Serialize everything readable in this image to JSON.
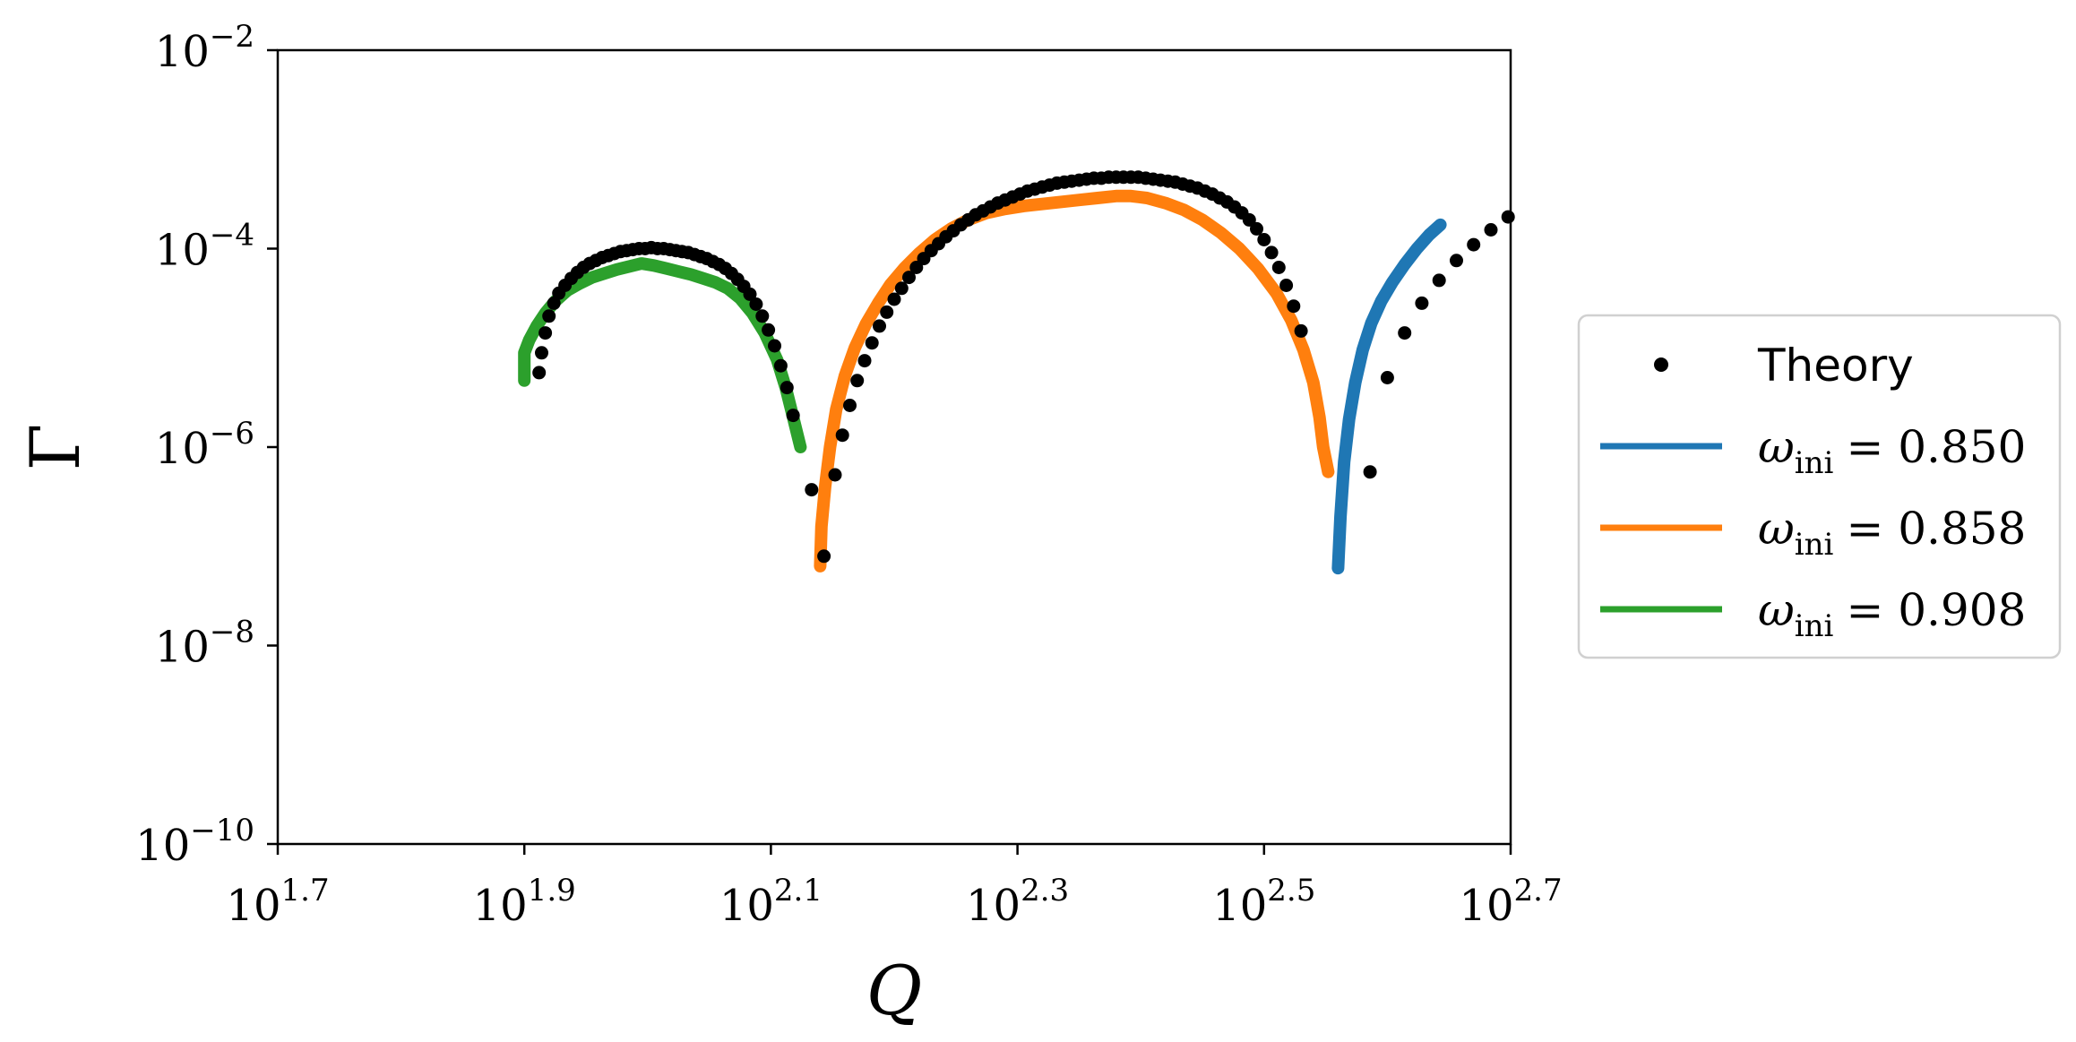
{
  "chart_data": {
    "type": "line",
    "xlabel": "Q",
    "ylabel": "Γ",
    "x_scale": "log10",
    "y_scale": "log10",
    "xlim": [
      1.7,
      2.7
    ],
    "ylim": [
      -10,
      -2
    ],
    "x_ticks": [
      {
        "exp": 1.7,
        "base": "10",
        "sup": "1.7"
      },
      {
        "exp": 1.9,
        "base": "10",
        "sup": "1.9"
      },
      {
        "exp": 2.1,
        "base": "10",
        "sup": "2.1"
      },
      {
        "exp": 2.3,
        "base": "10",
        "sup": "2.3"
      },
      {
        "exp": 2.5,
        "base": "10",
        "sup": "2.5"
      },
      {
        "exp": 2.7,
        "base": "10",
        "sup": "2.7"
      }
    ],
    "y_ticks": [
      {
        "exp": -2,
        "base": "10",
        "sup": "−2"
      },
      {
        "exp": -4,
        "base": "10",
        "sup": "−4"
      },
      {
        "exp": -6,
        "base": "10",
        "sup": "−6"
      },
      {
        "exp": -8,
        "base": "10",
        "sup": "−8"
      },
      {
        "exp": -10,
        "base": "10",
        "sup": "−10"
      }
    ],
    "legend_position": "outside-right",
    "series": [
      {
        "name": "Theory",
        "style": "dots",
        "color": "#000000",
        "points": [
          [
            1.912,
            -5.25
          ],
          [
            1.914,
            -5.05
          ],
          [
            1.917,
            -4.85
          ],
          [
            1.92,
            -4.68
          ],
          [
            1.924,
            -4.55
          ],
          [
            1.928,
            -4.45
          ],
          [
            1.933,
            -4.37
          ],
          [
            1.938,
            -4.3
          ],
          [
            1.943,
            -4.24
          ],
          [
            1.948,
            -4.19
          ],
          [
            1.953,
            -4.15
          ],
          [
            1.958,
            -4.12
          ],
          [
            1.963,
            -4.09
          ],
          [
            1.968,
            -4.07
          ],
          [
            1.973,
            -4.05
          ],
          [
            1.978,
            -4.03
          ],
          [
            1.983,
            -4.02
          ],
          [
            1.988,
            -4.01
          ],
          [
            1.993,
            -4.0
          ],
          [
            1.998,
            -4.0
          ],
          [
            2.003,
            -3.99
          ],
          [
            2.008,
            -4.0
          ],
          [
            2.013,
            -4.0
          ],
          [
            2.018,
            -4.01
          ],
          [
            2.023,
            -4.02
          ],
          [
            2.028,
            -4.03
          ],
          [
            2.033,
            -4.04
          ],
          [
            2.038,
            -4.06
          ],
          [
            2.043,
            -4.08
          ],
          [
            2.048,
            -4.1
          ],
          [
            2.053,
            -4.13
          ],
          [
            2.058,
            -4.16
          ],
          [
            2.063,
            -4.2
          ],
          [
            2.068,
            -4.25
          ],
          [
            2.073,
            -4.31
          ],
          [
            2.078,
            -4.38
          ],
          [
            2.083,
            -4.46
          ],
          [
            2.088,
            -4.56
          ],
          [
            2.093,
            -4.68
          ],
          [
            2.098,
            -4.82
          ],
          [
            2.103,
            -4.98
          ],
          [
            2.108,
            -5.18
          ],
          [
            2.113,
            -5.4
          ],
          [
            2.118,
            -5.68
          ],
          [
            2.133,
            -6.43
          ],
          [
            2.143,
            -7.1
          ],
          [
            2.152,
            -6.28
          ],
          [
            2.158,
            -5.88
          ],
          [
            2.164,
            -5.58
          ],
          [
            2.17,
            -5.33
          ],
          [
            2.176,
            -5.13
          ],
          [
            2.182,
            -4.95
          ],
          [
            2.188,
            -4.78
          ],
          [
            2.194,
            -4.64
          ],
          [
            2.2,
            -4.51
          ],
          [
            2.206,
            -4.4
          ],
          [
            2.212,
            -4.29
          ],
          [
            2.218,
            -4.19
          ],
          [
            2.224,
            -4.1
          ],
          [
            2.23,
            -4.02
          ],
          [
            2.236,
            -3.95
          ],
          [
            2.242,
            -3.88
          ],
          [
            2.248,
            -3.82
          ],
          [
            2.254,
            -3.76
          ],
          [
            2.26,
            -3.71
          ],
          [
            2.266,
            -3.66
          ],
          [
            2.272,
            -3.62
          ],
          [
            2.278,
            -3.58
          ],
          [
            2.284,
            -3.54
          ],
          [
            2.29,
            -3.51
          ],
          [
            2.296,
            -3.48
          ],
          [
            2.302,
            -3.45
          ],
          [
            2.308,
            -3.42
          ],
          [
            2.314,
            -3.4
          ],
          [
            2.32,
            -3.38
          ],
          [
            2.326,
            -3.36
          ],
          [
            2.332,
            -3.34
          ],
          [
            2.338,
            -3.33
          ],
          [
            2.344,
            -3.32
          ],
          [
            2.35,
            -3.31
          ],
          [
            2.356,
            -3.3
          ],
          [
            2.362,
            -3.29
          ],
          [
            2.368,
            -3.29
          ],
          [
            2.374,
            -3.28
          ],
          [
            2.38,
            -3.28
          ],
          [
            2.386,
            -3.28
          ],
          [
            2.392,
            -3.28
          ],
          [
            2.398,
            -3.28
          ],
          [
            2.404,
            -3.29
          ],
          [
            2.41,
            -3.3
          ],
          [
            2.416,
            -3.31
          ],
          [
            2.422,
            -3.32
          ],
          [
            2.428,
            -3.33
          ],
          [
            2.434,
            -3.35
          ],
          [
            2.44,
            -3.37
          ],
          [
            2.446,
            -3.39
          ],
          [
            2.452,
            -3.42
          ],
          [
            2.458,
            -3.45
          ],
          [
            2.464,
            -3.49
          ],
          [
            2.47,
            -3.53
          ],
          [
            2.476,
            -3.58
          ],
          [
            2.482,
            -3.64
          ],
          [
            2.488,
            -3.71
          ],
          [
            2.494,
            -3.8
          ],
          [
            2.5,
            -3.91
          ],
          [
            2.506,
            -4.04
          ],
          [
            2.512,
            -4.19
          ],
          [
            2.518,
            -4.37
          ],
          [
            2.524,
            -4.58
          ],
          [
            2.53,
            -4.83
          ],
          [
            2.586,
            -6.25
          ],
          [
            2.6,
            -5.3
          ],
          [
            2.614,
            -4.85
          ],
          [
            2.628,
            -4.55
          ],
          [
            2.642,
            -4.32
          ],
          [
            2.656,
            -4.12
          ],
          [
            2.67,
            -3.96
          ],
          [
            2.684,
            -3.81
          ],
          [
            2.698,
            -3.68
          ]
        ]
      },
      {
        "name": "ω_ini = 0.850",
        "label_symbol": "ω",
        "label_sub": "ini",
        "label_value": "= 0.850",
        "style": "line",
        "color": "#1f77b4",
        "points": [
          [
            2.56,
            -7.22
          ],
          [
            2.562,
            -6.7
          ],
          [
            2.565,
            -6.15
          ],
          [
            2.569,
            -5.72
          ],
          [
            2.574,
            -5.35
          ],
          [
            2.58,
            -5.02
          ],
          [
            2.587,
            -4.75
          ],
          [
            2.595,
            -4.53
          ],
          [
            2.604,
            -4.34
          ],
          [
            2.614,
            -4.16
          ],
          [
            2.624,
            -4.0
          ],
          [
            2.634,
            -3.86
          ],
          [
            2.643,
            -3.76
          ]
        ]
      },
      {
        "name": "ω_ini = 0.858",
        "label_symbol": "ω",
        "label_sub": "ini",
        "label_value": "= 0.858",
        "style": "line",
        "color": "#ff7f0e",
        "points": [
          [
            2.14,
            -7.2
          ],
          [
            2.141,
            -6.8
          ],
          [
            2.144,
            -6.4
          ],
          [
            2.148,
            -6.0
          ],
          [
            2.153,
            -5.62
          ],
          [
            2.16,
            -5.28
          ],
          [
            2.168,
            -5.0
          ],
          [
            2.177,
            -4.76
          ],
          [
            2.187,
            -4.55
          ],
          [
            2.197,
            -4.36
          ],
          [
            2.208,
            -4.2
          ],
          [
            2.22,
            -4.05
          ],
          [
            2.233,
            -3.91
          ],
          [
            2.246,
            -3.8
          ],
          [
            2.26,
            -3.71
          ],
          [
            2.275,
            -3.64
          ],
          [
            2.29,
            -3.6
          ],
          [
            2.305,
            -3.57
          ],
          [
            2.32,
            -3.55
          ],
          [
            2.335,
            -3.53
          ],
          [
            2.35,
            -3.51
          ],
          [
            2.365,
            -3.49
          ],
          [
            2.38,
            -3.47
          ],
          [
            2.392,
            -3.47
          ],
          [
            2.405,
            -3.49
          ],
          [
            2.42,
            -3.54
          ],
          [
            2.435,
            -3.61
          ],
          [
            2.45,
            -3.71
          ],
          [
            2.465,
            -3.84
          ],
          [
            2.48,
            -4.0
          ],
          [
            2.495,
            -4.2
          ],
          [
            2.51,
            -4.45
          ],
          [
            2.522,
            -4.72
          ],
          [
            2.532,
            -5.02
          ],
          [
            2.54,
            -5.35
          ],
          [
            2.545,
            -5.7
          ],
          [
            2.548,
            -6.0
          ],
          [
            2.552,
            -6.25
          ]
        ]
      },
      {
        "name": "ω_ini = 0.908",
        "label_symbol": "ω",
        "label_sub": "ini",
        "label_value": "= 0.908",
        "style": "line",
        "color": "#2ca02c",
        "points": [
          [
            1.9,
            -5.33
          ],
          [
            1.9,
            -5.05
          ],
          [
            1.904,
            -4.92
          ],
          [
            1.91,
            -4.78
          ],
          [
            1.917,
            -4.65
          ],
          [
            1.925,
            -4.53
          ],
          [
            1.935,
            -4.42
          ],
          [
            1.945,
            -4.35
          ],
          [
            1.955,
            -4.29
          ],
          [
            1.965,
            -4.25
          ],
          [
            1.975,
            -4.21
          ],
          [
            1.985,
            -4.18
          ],
          [
            1.995,
            -4.15
          ],
          [
            2.005,
            -4.17
          ],
          [
            2.015,
            -4.2
          ],
          [
            2.025,
            -4.23
          ],
          [
            2.035,
            -4.26
          ],
          [
            2.045,
            -4.3
          ],
          [
            2.055,
            -4.34
          ],
          [
            2.065,
            -4.4
          ],
          [
            2.075,
            -4.5
          ],
          [
            2.085,
            -4.65
          ],
          [
            2.095,
            -4.85
          ],
          [
            2.105,
            -5.12
          ],
          [
            2.112,
            -5.4
          ],
          [
            2.118,
            -5.7
          ],
          [
            2.124,
            -6.0
          ]
        ]
      }
    ]
  }
}
